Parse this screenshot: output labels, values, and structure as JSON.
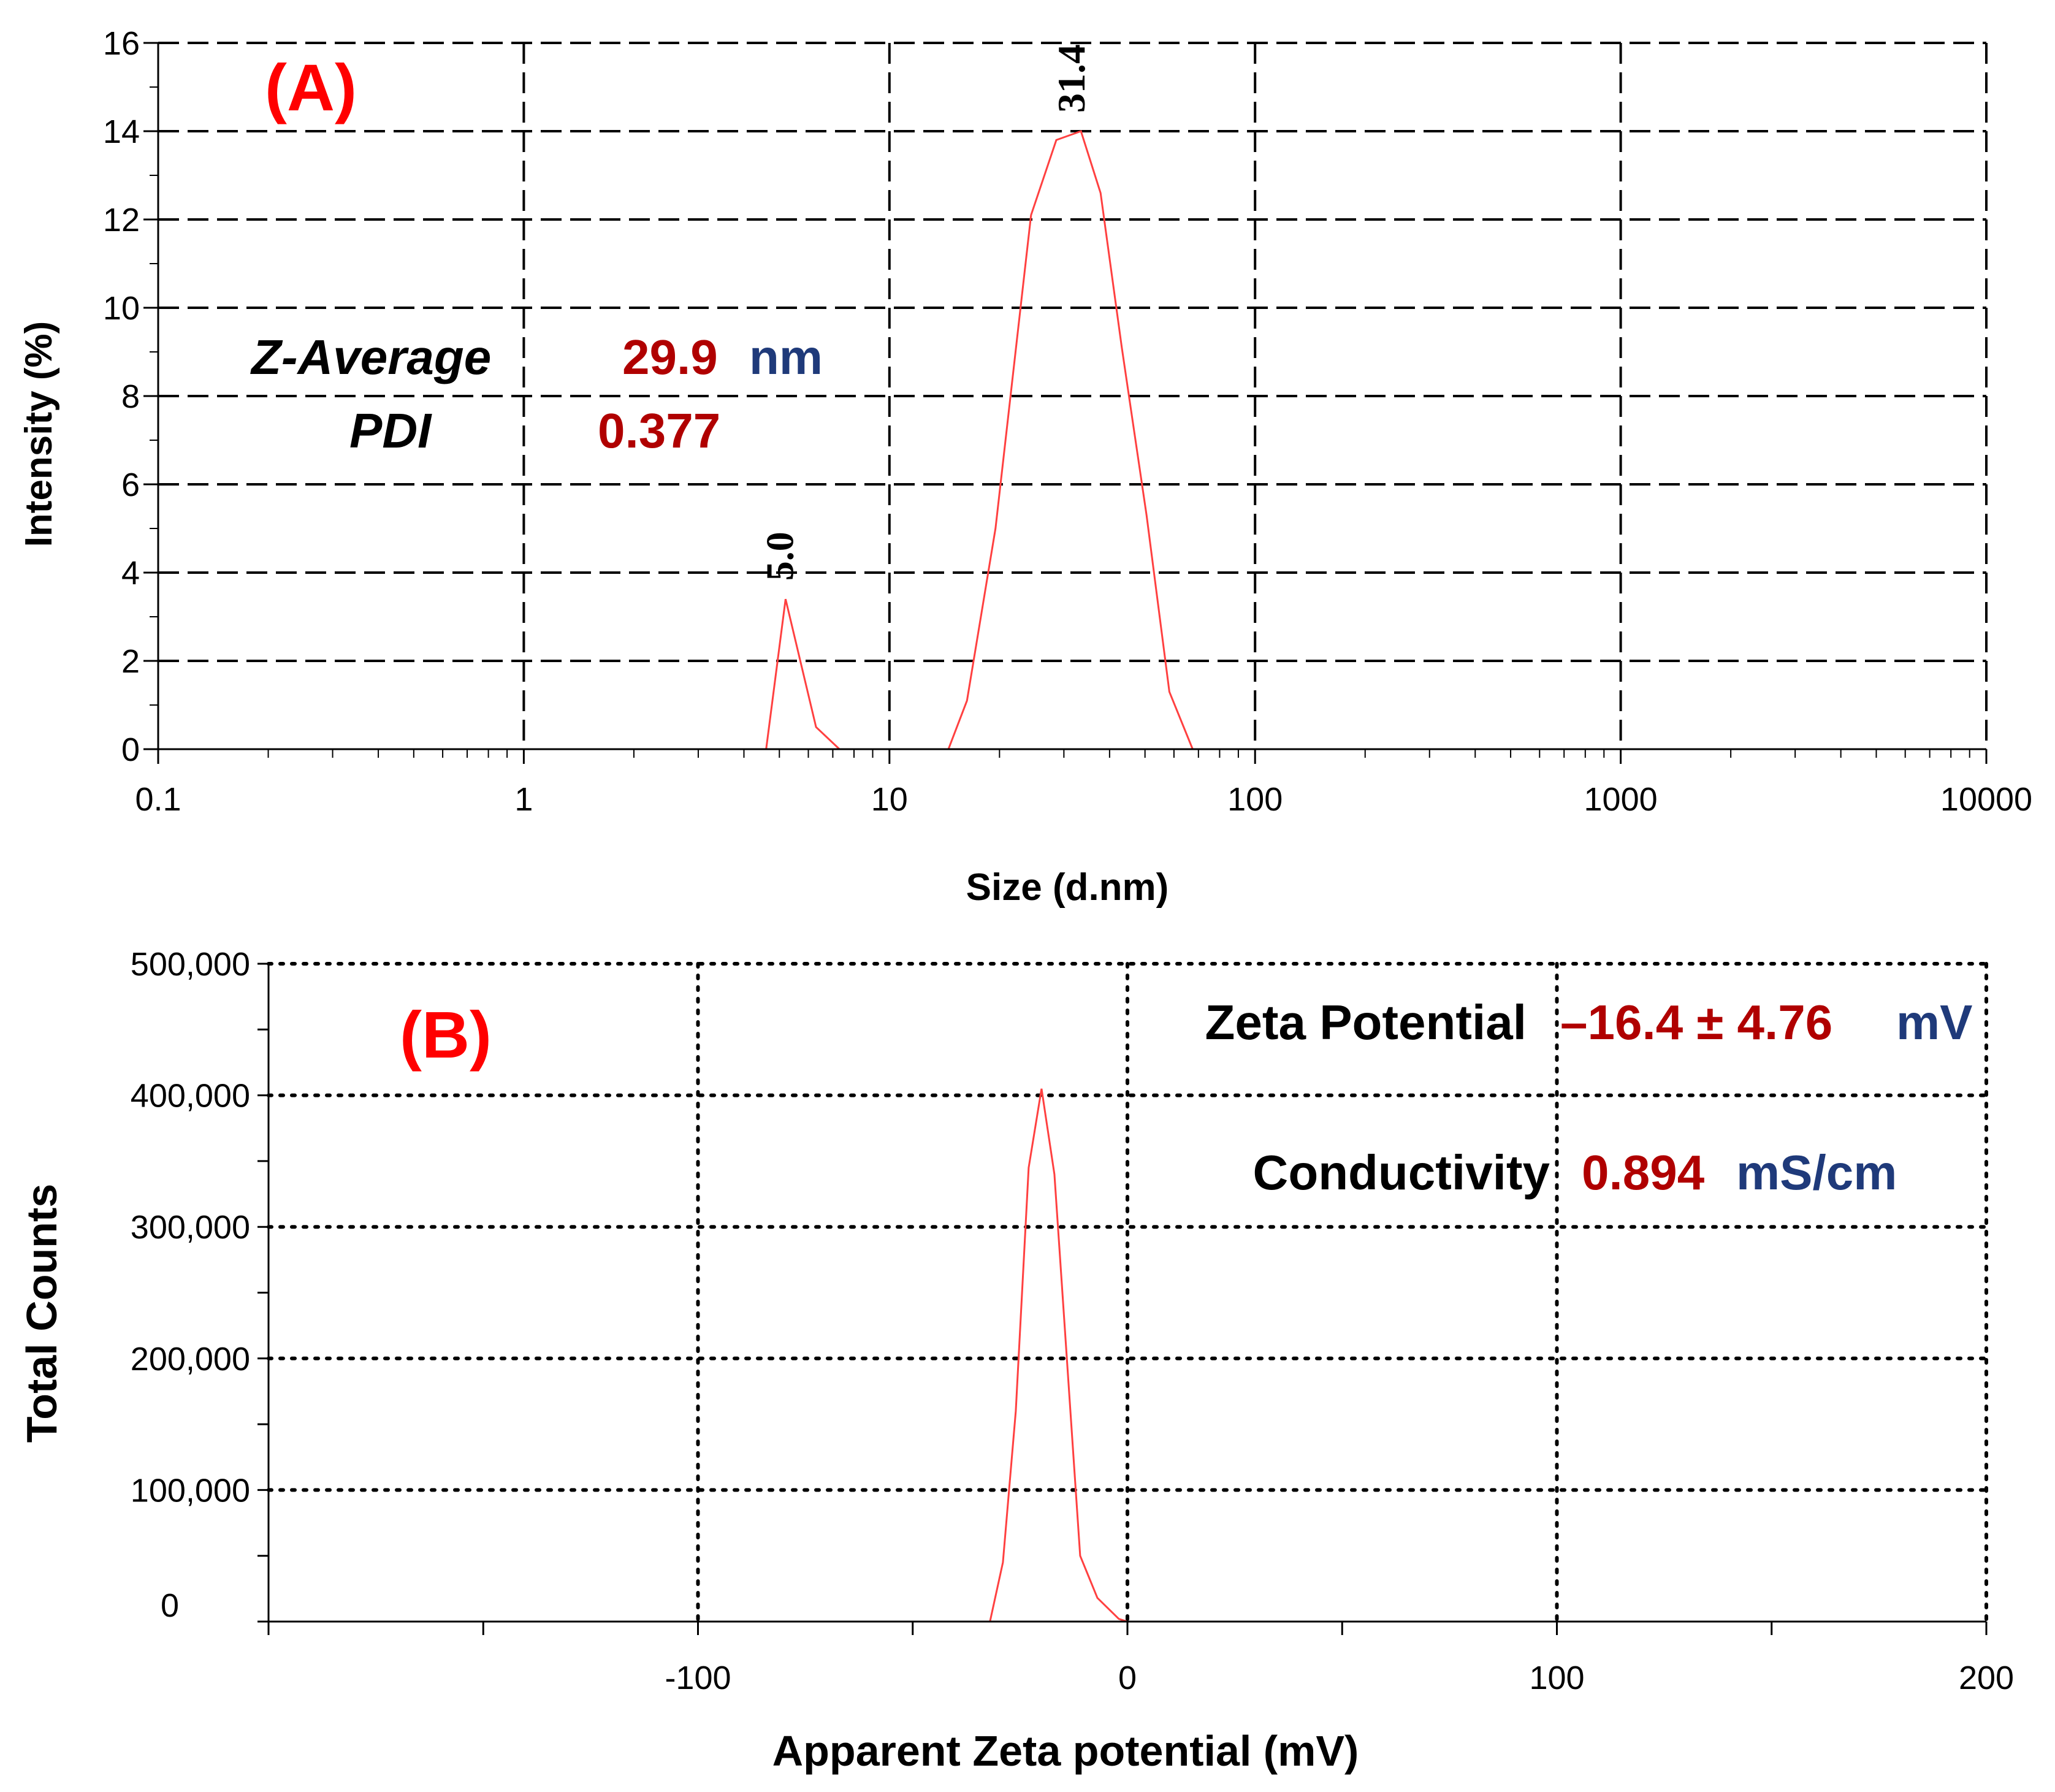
{
  "chart_data": [
    {
      "type": "line",
      "panel_label": "(A)",
      "xlabel": "Size (d.nm)",
      "ylabel": "Intensity (%)",
      "xscale": "log",
      "xlim": [
        0.1,
        10000
      ],
      "ylim": [
        0,
        16
      ],
      "xticks": [
        0.1,
        1,
        10,
        100,
        1000,
        10000
      ],
      "xtick_labels": [
        "0.1",
        "1",
        "10",
        "100",
        "1000",
        "10000"
      ],
      "yticks": [
        0,
        2,
        4,
        6,
        8,
        10,
        12,
        14,
        16
      ],
      "ytick_labels": [
        "0",
        "2",
        "4",
        "6",
        "8",
        "10",
        "12",
        "14",
        "16"
      ],
      "grid": "dashed",
      "color": "#ff4040",
      "x": [
        0.4,
        4.6,
        5.2,
        6.3,
        7.3,
        14.5,
        16.3,
        19.5,
        24.4,
        28.6,
        33.4,
        37.8,
        43.2,
        50.5,
        58.3,
        67.5,
        78.0,
        10000
      ],
      "y": [
        0,
        0,
        3.4,
        0.5,
        0,
        0,
        1.1,
        5.0,
        12.1,
        13.8,
        14.0,
        12.6,
        9.1,
        5.3,
        1.3,
        0,
        0,
        0
      ],
      "peak_labels": [
        {
          "x": 5.0,
          "y": 3.4,
          "text": "5.0"
        },
        {
          "x": 31.4,
          "y": 14.0,
          "text": "31.4"
        }
      ],
      "annotations": {
        "z_average_label": "Z-Average",
        "z_average_value": "29.9",
        "z_average_unit": "nm",
        "pdi_label": "PDI",
        "pdi_value": "0.377"
      }
    },
    {
      "type": "line",
      "panel_label": "(B)",
      "xlabel": "Apparent Zeta potential (mV)",
      "ylabel": "Total Counts",
      "xlim": [
        -200,
        200
      ],
      "ylim": [
        0,
        500000
      ],
      "xticks": [
        -100,
        0,
        100,
        200
      ],
      "xtick_labels": [
        "-100",
        "0",
        "100",
        "200"
      ],
      "yticks": [
        0,
        100000,
        200000,
        300000,
        400000,
        500000
      ],
      "ytick_labels": [
        "0",
        "100,000",
        "200,000",
        "300,000",
        "400,000",
        "500,000"
      ],
      "grid": "dotted",
      "color": "#ff4040",
      "x": [
        -150,
        -32,
        -29,
        -26,
        -23,
        -20,
        -17,
        -14,
        -11,
        -7,
        -2,
        0,
        150
      ],
      "y": [
        0,
        0,
        45000,
        160000,
        345000,
        405000,
        340000,
        195000,
        50000,
        18000,
        2000,
        0,
        0
      ],
      "annotations": {
        "zeta_label": "Zeta Potential",
        "zeta_value": "–16.4 ± 4.76",
        "zeta_unit": "mV",
        "conductivity_label": "Conductivity",
        "conductivity_value": "0.894",
        "conductivity_unit": "mS/cm"
      }
    }
  ]
}
